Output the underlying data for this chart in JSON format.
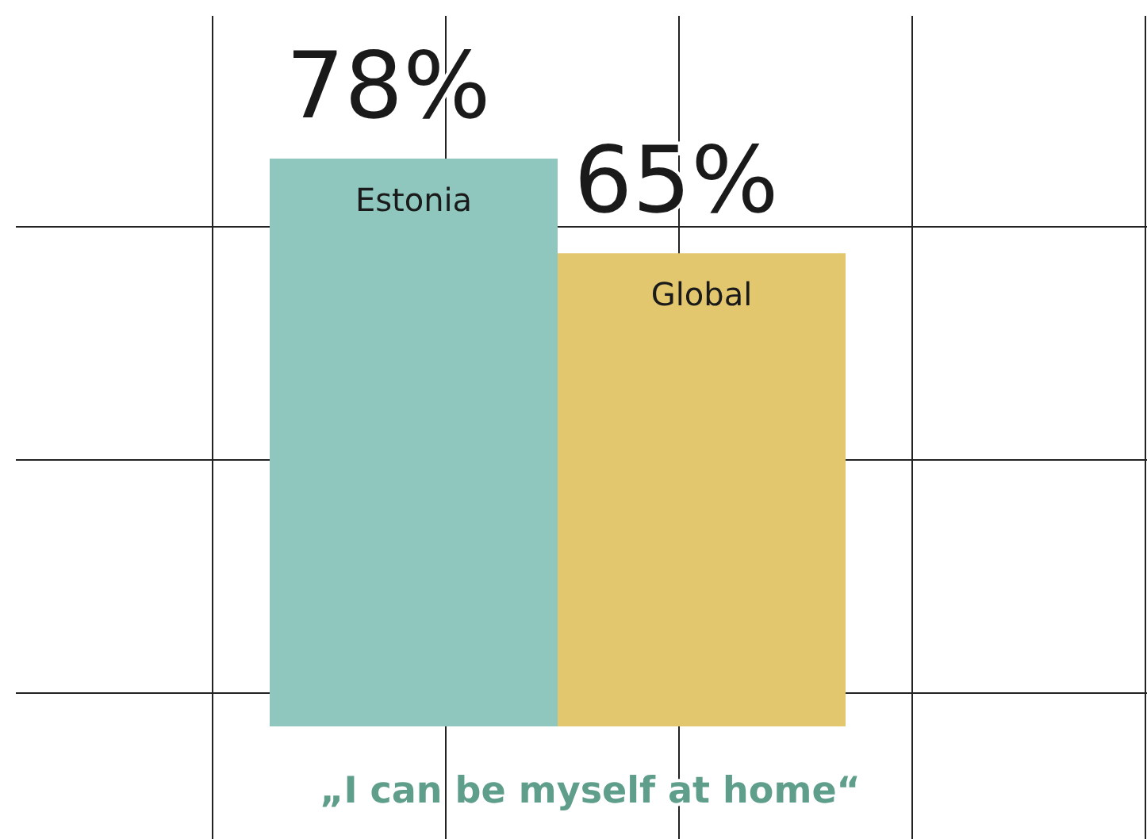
{
  "chart_data": {
    "type": "bar",
    "title": "„I can be myself at home“",
    "categories": [
      "Estonia",
      "Global"
    ],
    "values": [
      78,
      65
    ],
    "colors": [
      "#8fc7bf",
      "#e2c76e"
    ],
    "value_labels": [
      "78%",
      "65%"
    ],
    "ylim": [
      0,
      100
    ],
    "grid": true
  }
}
